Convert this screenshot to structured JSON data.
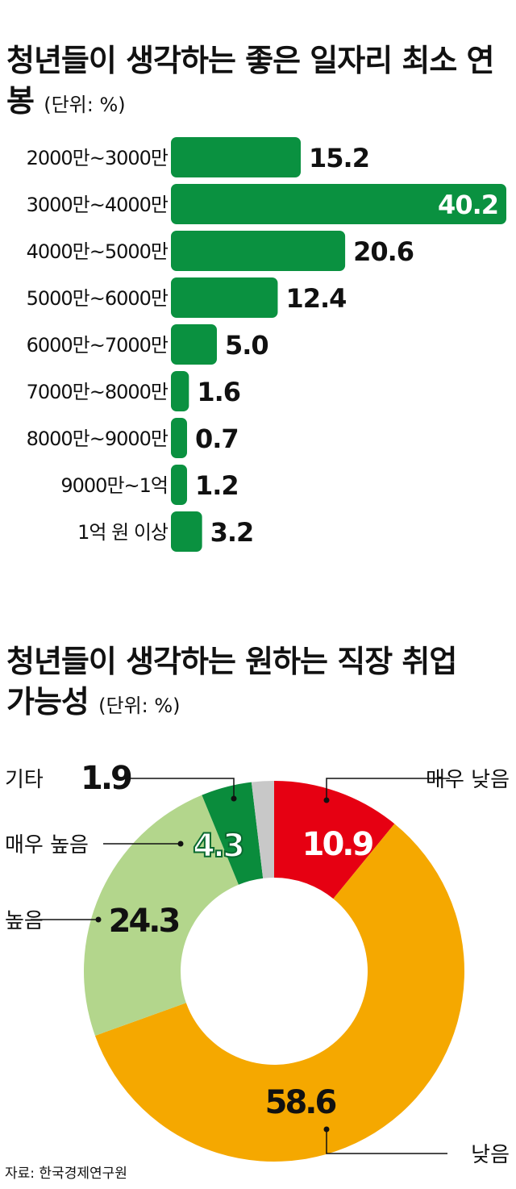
{
  "chart_data": [
    {
      "type": "bar",
      "orientation": "horizontal",
      "title": "청년들이 생각하는 좋은 일자리 최소 연봉",
      "unit": "(단위: %)",
      "categories": [
        "2000만~3000만",
        "3000만~4000만",
        "4000만~5000만",
        "5000만~6000만",
        "6000만~7000만",
        "7000만~8000만",
        "8000만~9000만",
        "9000만~1억",
        "1억 원 이상"
      ],
      "values": [
        15.2,
        40.2,
        20.6,
        12.4,
        5.0,
        1.6,
        0.7,
        1.2,
        3.2
      ],
      "value_labels": [
        "15.2",
        "40.2",
        "20.6",
        "12.4",
        "5.0",
        "1.6",
        "0.7",
        "1.2",
        "3.2"
      ],
      "color": "#0a9140"
    },
    {
      "type": "pie",
      "donut": true,
      "title": "청년들이 생각하는 원하는 직장 취업 가능성",
      "unit": "(단위: %)",
      "slices": [
        {
          "label": "매우 낮음",
          "value": 10.9,
          "value_label": "10.9",
          "color": "#e60012"
        },
        {
          "label": "낮음",
          "value": 58.6,
          "value_label": "58.6",
          "color": "#f5a800"
        },
        {
          "label": "높음",
          "value": 24.3,
          "value_label": "24.3",
          "color": "#b3d68c"
        },
        {
          "label": "매우 높음",
          "value": 4.3,
          "value_label": "4.3",
          "color": "#0a8c3c"
        },
        {
          "label": "기타",
          "value": 1.9,
          "value_label": "1.9",
          "color": "#c8c8c8"
        }
      ]
    }
  ],
  "source": "자료: 한국경제연구원"
}
